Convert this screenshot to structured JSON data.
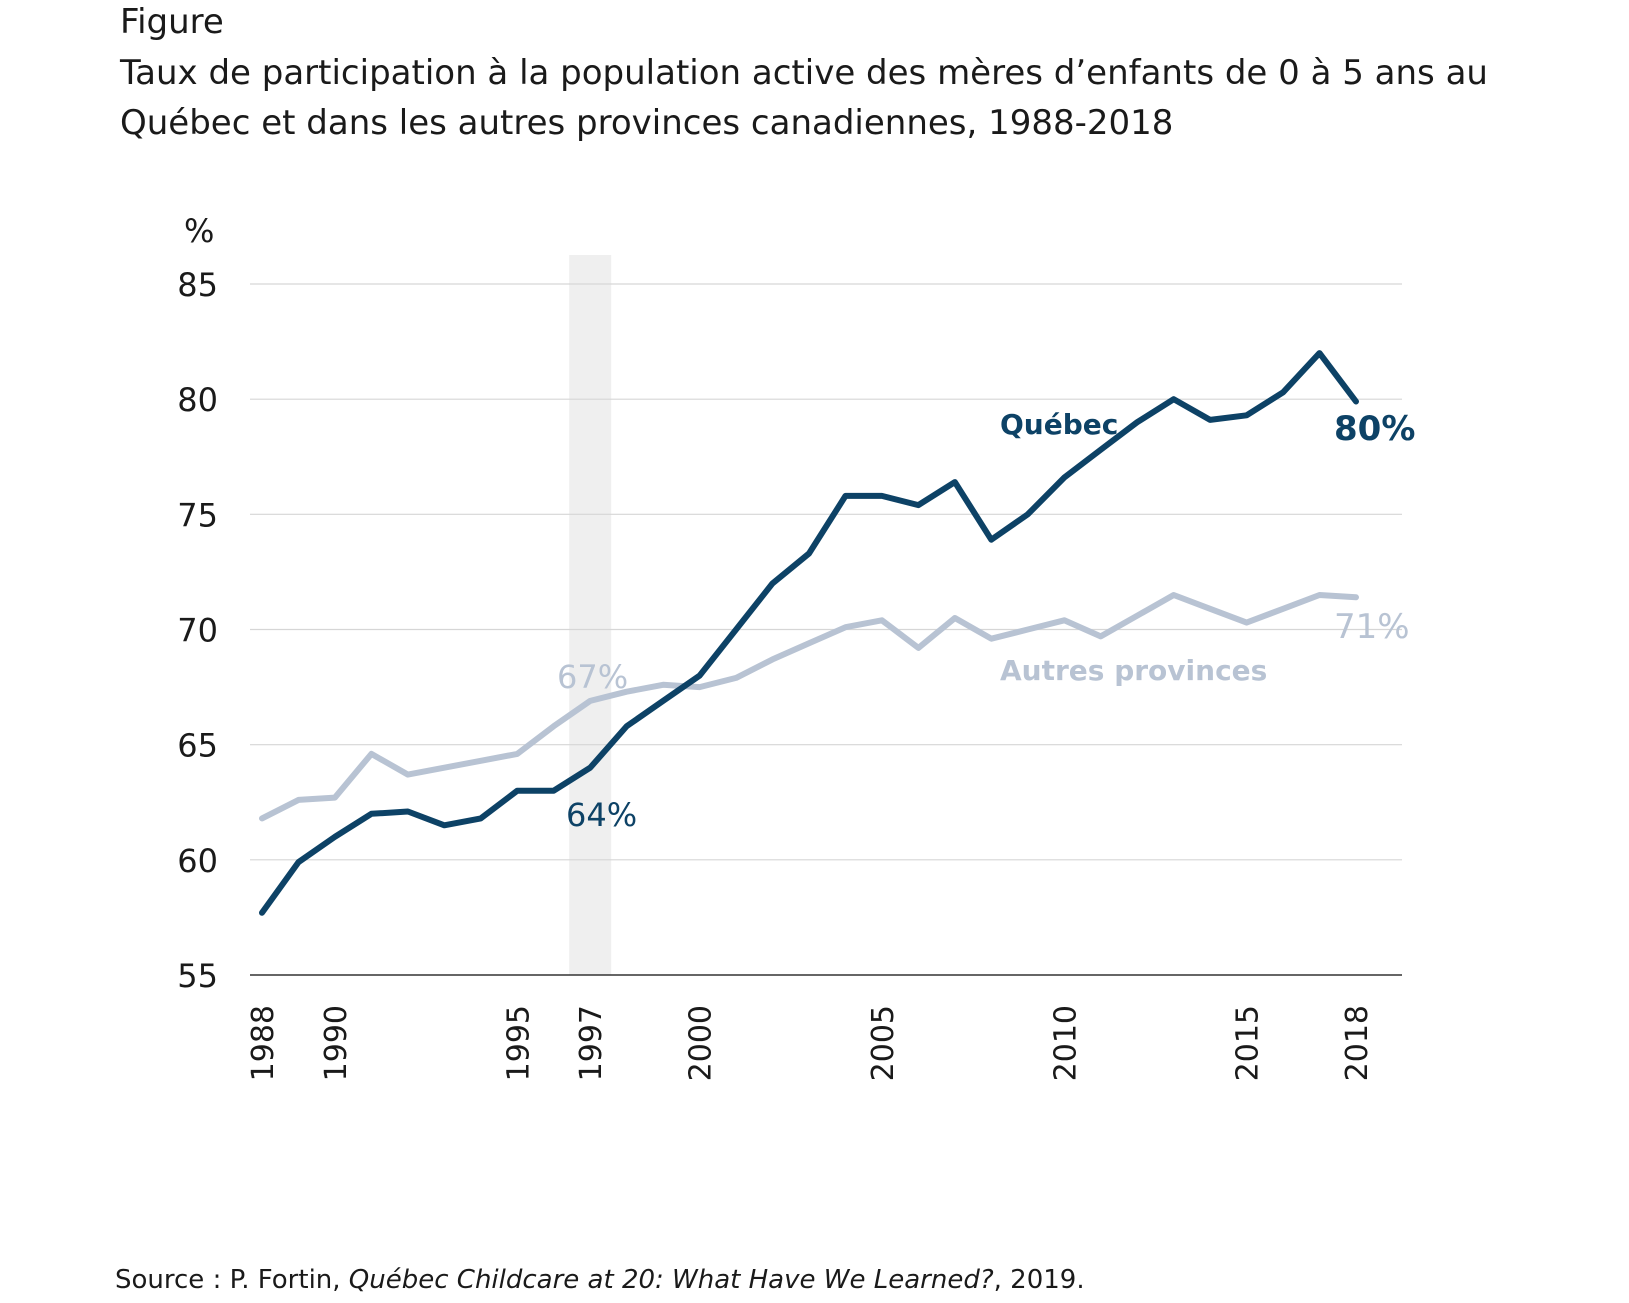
{
  "figure_label": "Figure",
  "title": "Taux de participation à la population active des mères d’enfants de 0 à 5 ans au\nQuébec et dans les autres provinces canadiennes, 1988-2018",
  "source": {
    "prefix": "Source : P. Fortin, ",
    "work": "Québec Childcare at 20: What Have We Learned?",
    "suffix": ", 2019."
  },
  "colors": {
    "quebec": "#0d4266",
    "autres": "#b8c3d3",
    "grid": "#d6d6d6",
    "highlight": "#efefef"
  },
  "chart_data": {
    "type": "line",
    "ylabel": "%",
    "xlabel": "",
    "ylim": [
      55,
      85
    ],
    "yticks": [
      55,
      60,
      65,
      70,
      75,
      80,
      85
    ],
    "xlim": [
      1988,
      2018
    ],
    "xticks": [
      1988,
      1990,
      1995,
      1997,
      2000,
      2005,
      2010,
      2015,
      2018
    ],
    "grid": "horizontal",
    "highlight_year": 1997,
    "series": [
      {
        "name": "Québec",
        "key": "quebec",
        "x": [
          1988,
          1989,
          1990,
          1991,
          1992,
          1993,
          1994,
          1995,
          1996,
          1997,
          1998,
          1999,
          2000,
          2001,
          2002,
          2003,
          2004,
          2005,
          2006,
          2007,
          2008,
          2009,
          2010,
          2011,
          2012,
          2013,
          2014,
          2015,
          2016,
          2017,
          2018
        ],
        "values": [
          57.7,
          59.9,
          61.0,
          62.0,
          62.1,
          61.5,
          61.8,
          63.0,
          63.0,
          64.0,
          65.8,
          66.9,
          68.0,
          70.0,
          72.0,
          73.3,
          75.8,
          75.8,
          75.4,
          76.4,
          73.9,
          75.0,
          76.6,
          77.8,
          79.0,
          80.0,
          79.1,
          79.3,
          80.3,
          82.0,
          79.9
        ],
        "end_label": "80%",
        "mid_label": "64%"
      },
      {
        "name": "Autres provinces",
        "key": "autres",
        "x": [
          1988,
          1989,
          1990,
          1991,
          1992,
          1993,
          1994,
          1995,
          1996,
          1997,
          1998,
          1999,
          2000,
          2001,
          2002,
          2003,
          2004,
          2005,
          2006,
          2007,
          2008,
          2009,
          2010,
          2011,
          2012,
          2013,
          2014,
          2015,
          2016,
          2017,
          2018
        ],
        "values": [
          61.8,
          62.6,
          62.7,
          64.6,
          63.7,
          64.0,
          64.3,
          64.6,
          65.8,
          66.9,
          67.3,
          67.6,
          67.5,
          67.9,
          68.7,
          69.4,
          70.1,
          70.4,
          69.2,
          70.5,
          69.6,
          70.0,
          70.4,
          69.7,
          70.6,
          71.5,
          70.9,
          70.3,
          70.9,
          71.5,
          71.4
        ],
        "end_label": "71%",
        "mid_label": "67%"
      }
    ]
  }
}
